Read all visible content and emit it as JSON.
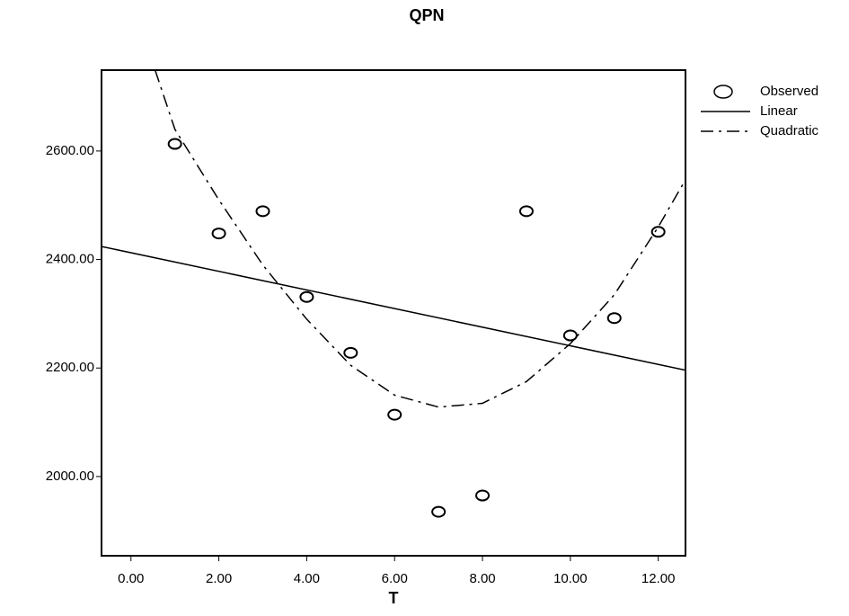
{
  "chart_data": {
    "type": "scatter",
    "title": "QPN",
    "x_label": "T",
    "xlim": [
      -0.67,
      12.62
    ],
    "ylim": [
      1854,
      2749
    ],
    "xticks": [
      {
        "value": 0,
        "label": "0.00"
      },
      {
        "value": 2,
        "label": "2.00"
      },
      {
        "value": 4,
        "label": "4.00"
      },
      {
        "value": 6,
        "label": "6.00"
      },
      {
        "value": 8,
        "label": "8.00"
      },
      {
        "value": 10,
        "label": "10.00"
      },
      {
        "value": 12,
        "label": "12.00"
      }
    ],
    "yticks": [
      {
        "value": 2000,
        "label": "2000.00"
      },
      {
        "value": 2200,
        "label": "2200.00"
      },
      {
        "value": 2400,
        "label": "2400.00"
      },
      {
        "value": 2600,
        "label": "2600.00"
      }
    ],
    "legend": "right",
    "series": [
      {
        "name": "Observed",
        "style": "points",
        "color": "#000000",
        "x": [
          1,
          2,
          3,
          4,
          5,
          6,
          7,
          8,
          9,
          10,
          11,
          12
        ],
        "values": [
          2613,
          2448,
          2489,
          2331,
          2228,
          2114,
          1935,
          1965,
          2489,
          2260,
          2292,
          2451
        ]
      },
      {
        "name": "Linear",
        "style": "solid",
        "color": "#000000",
        "x": [
          -0.67,
          12.62
        ],
        "values": [
          2424,
          2196
        ]
      },
      {
        "name": "Quadratic",
        "style": "dashdot",
        "color": "#000000",
        "x": [
          0.55,
          1,
          2,
          3,
          4,
          5,
          6,
          7,
          8,
          9,
          10,
          11,
          12,
          12.62
        ],
        "values": [
          2749,
          2640,
          2510,
          2390,
          2290,
          2205,
          2150,
          2128,
          2135,
          2175,
          2245,
          2335,
          2460,
          2547
        ]
      }
    ]
  }
}
